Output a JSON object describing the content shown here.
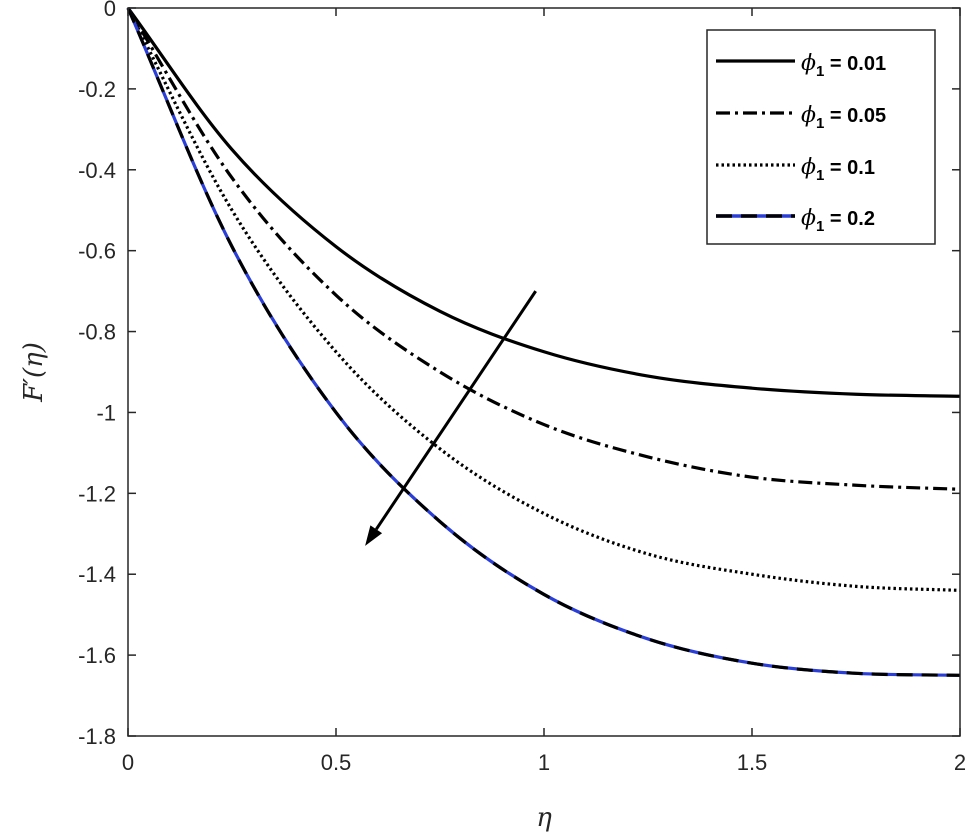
{
  "chart_data": {
    "type": "line",
    "xlabel": "η",
    "ylabel": "F′(η)",
    "xlim": [
      0,
      2
    ],
    "ylim": [
      -1.8,
      0
    ],
    "xticks": [
      0,
      0.5,
      1,
      1.5,
      2
    ],
    "xtick_labels": [
      "0",
      "0.5",
      "1",
      "1.5",
      "2"
    ],
    "yticks": [
      0,
      -0.2,
      -0.4,
      -0.6,
      -0.8,
      -1,
      -1.2,
      -1.4,
      -1.6,
      -1.8
    ],
    "ytick_labels": [
      "0",
      "-0.2",
      "-0.4",
      "-0.6",
      "-0.8",
      "-1",
      "-1.2",
      "-1.4",
      "-1.6",
      "-1.8"
    ],
    "grid": false,
    "legend_position": "top-right",
    "x": [
      0,
      0.25,
      0.5,
      0.75,
      1,
      1.25,
      1.5,
      1.75,
      2
    ],
    "series": [
      {
        "name": "ϕ1 = 0.01",
        "legend_symbol": "ϕ",
        "legend_sub": "1",
        "legend_value": " = 0.01",
        "color": "#000000",
        "dash": "solid",
        "values": [
          0,
          -0.35,
          -0.59,
          -0.75,
          -0.85,
          -0.91,
          -0.94,
          -0.955,
          -0.96
        ]
      },
      {
        "name": "ϕ1 = 0.05",
        "legend_symbol": "ϕ",
        "legend_sub": "1",
        "legend_value": " = 0.05",
        "color": "#000000",
        "dash": "dashdot",
        "values": [
          0,
          -0.42,
          -0.71,
          -0.9,
          -1.03,
          -1.11,
          -1.16,
          -1.18,
          -1.19
        ]
      },
      {
        "name": "ϕ1 = 0.1",
        "legend_symbol": "ϕ",
        "legend_sub": "1",
        "legend_value": " = 0.1",
        "color": "#000000",
        "dash": "dotted",
        "values": [
          0,
          -0.5,
          -0.85,
          -1.09,
          -1.25,
          -1.35,
          -1.4,
          -1.43,
          -1.44
        ]
      },
      {
        "name": "ϕ1 = 0.2",
        "legend_symbol": "ϕ",
        "legend_sub": "1",
        "legend_value": " = 0.2",
        "color": "#2b3fd6",
        "overlay_color": "#000000",
        "dash": "dashed",
        "values": [
          0,
          -0.59,
          -1.0,
          -1.27,
          -1.45,
          -1.56,
          -1.62,
          -1.645,
          -1.65
        ]
      }
    ],
    "annotation": {
      "type": "arrow",
      "from": [
        0.98,
        -0.7
      ],
      "to": [
        0.57,
        -1.33
      ],
      "color": "#000000"
    }
  }
}
